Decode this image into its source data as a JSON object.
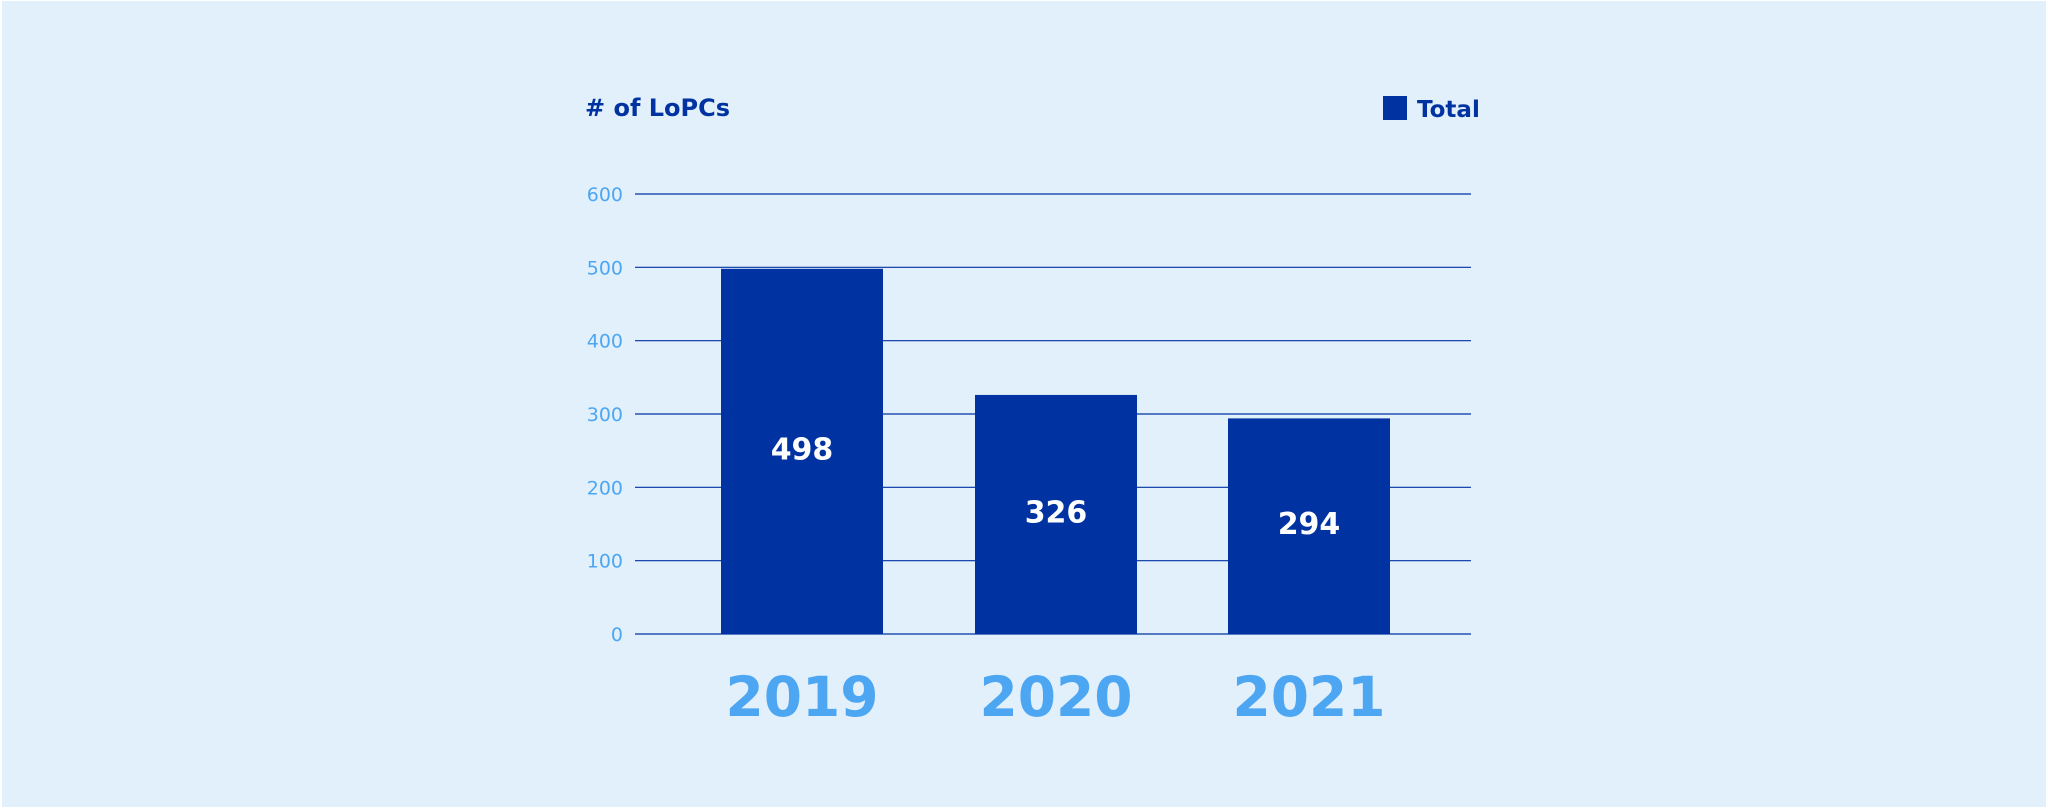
{
  "chart_data": {
    "type": "bar",
    "title": "",
    "xlabel": "",
    "ylabel": "# of LoPCs",
    "categories": [
      "2019",
      "2020",
      "2021"
    ],
    "series": [
      {
        "name": "Total",
        "values": [
          498,
          326,
          294
        ]
      }
    ],
    "data_labels": [
      "498",
      "326",
      "294"
    ],
    "yticks": [
      0,
      100,
      200,
      300,
      400,
      500,
      600
    ],
    "ylim": [
      0,
      600
    ],
    "grid": true,
    "legend": "top-right"
  },
  "colors": {
    "background": "#e2f0fc",
    "bar": "#0033a1",
    "gridline": "#0033a1",
    "axis_label": "#0033a1",
    "tick_label": "#4da6f2",
    "bar_label": "#ffffff"
  }
}
